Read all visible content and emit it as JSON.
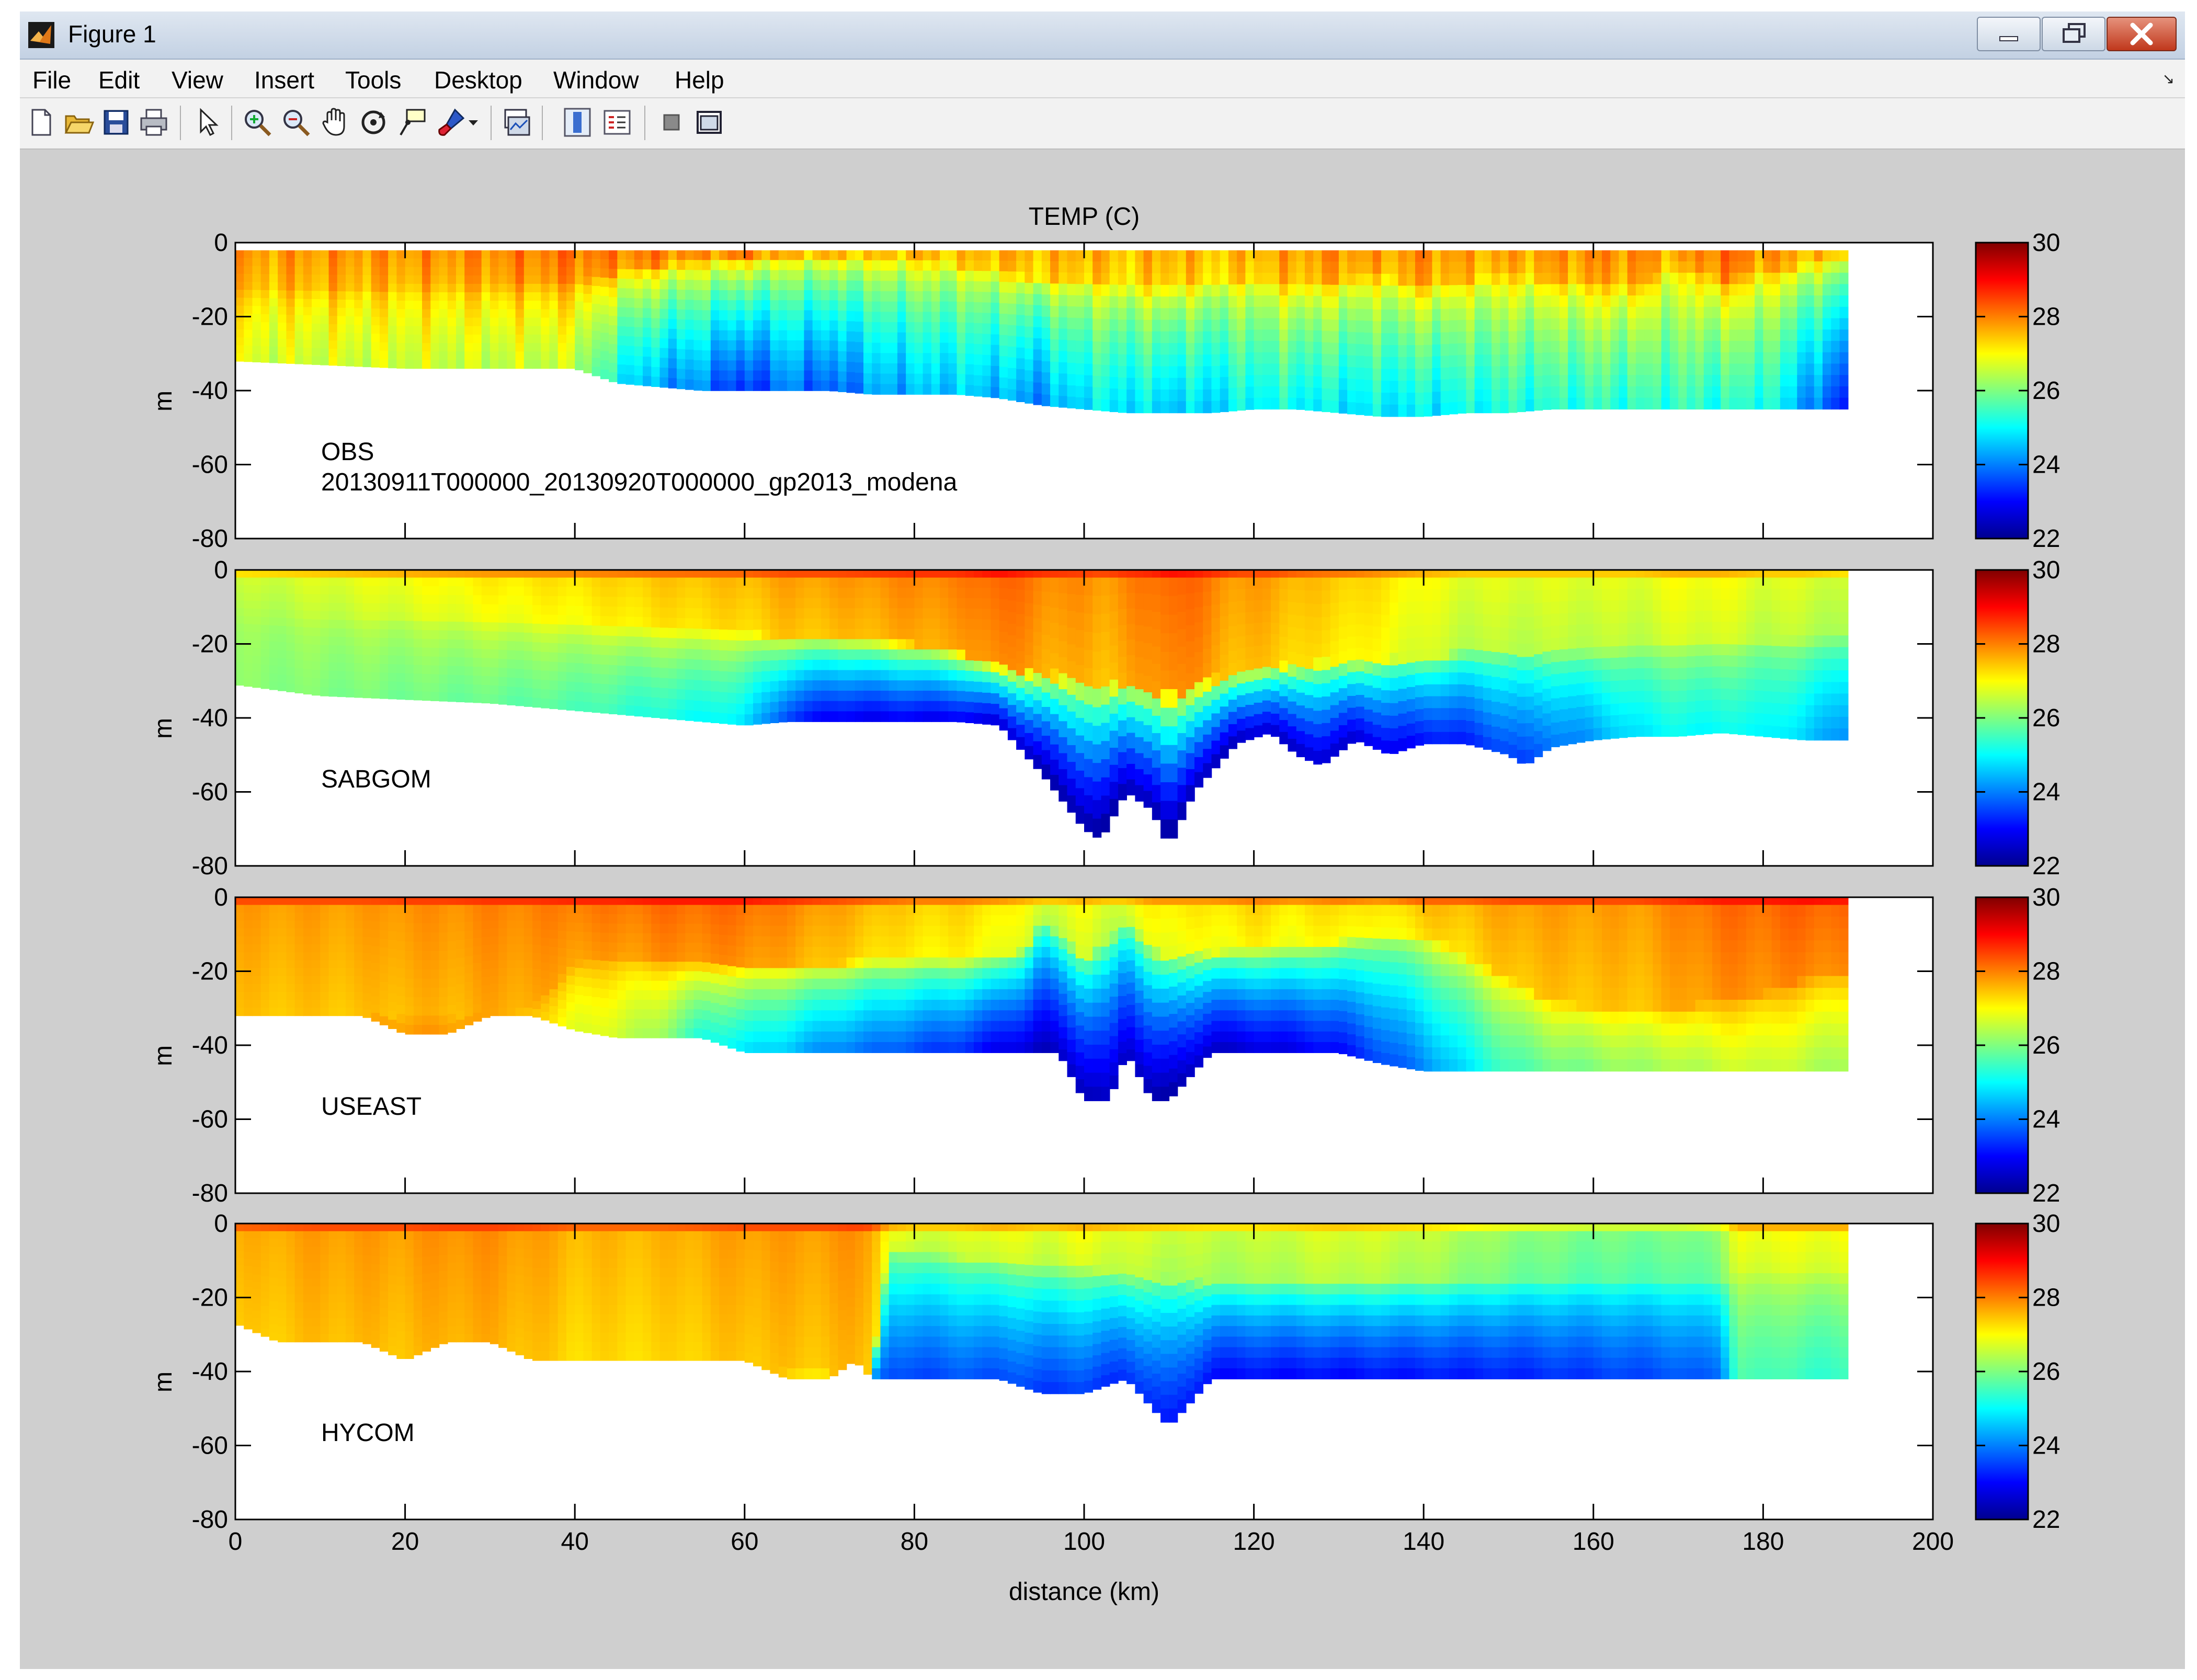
{
  "window": {
    "title": "Figure 1",
    "controls": [
      "minimize",
      "maximize",
      "close"
    ]
  },
  "menubar": {
    "items": [
      "File",
      "Edit",
      "View",
      "Insert",
      "Tools",
      "Desktop",
      "Window",
      "Help"
    ]
  },
  "toolbar": {
    "icons": [
      "new-figure-icon",
      "open-file-icon",
      "save-icon",
      "print-icon",
      "edit-plot-arrow-icon",
      "zoom-in-icon",
      "zoom-out-icon",
      "pan-hand-icon",
      "rotate-3d-icon",
      "data-cursor-icon",
      "brush-icon",
      "brush-dropdown-icon",
      "link-plot-icon",
      "colorbar-icon",
      "legend-icon",
      "hide-plot-tools-icon",
      "show-plot-tools-icon"
    ]
  },
  "figure": {
    "title": "TEMP (C)",
    "xlabel": "distance (km)",
    "ylabel": "m",
    "x_ticks": [
      "0",
      "20",
      "40",
      "60",
      "80",
      "100",
      "120",
      "140",
      "160",
      "180",
      "200"
    ],
    "y_ticks": [
      "0",
      "-20",
      "-40",
      "-60",
      "-80"
    ],
    "colorbar_ticks": [
      "30",
      "28",
      "26",
      "24",
      "22"
    ],
    "panels": [
      {
        "label": "OBS",
        "sublabel": "20130911T000000_20130920T000000_gp2013_modena"
      },
      {
        "label": "SABGOM",
        "sublabel": ""
      },
      {
        "label": "USEAST",
        "sublabel": ""
      },
      {
        "label": "HYCOM",
        "sublabel": ""
      }
    ]
  },
  "chart_data": [
    {
      "type": "heatmap",
      "name": "OBS",
      "title": "TEMP (C)",
      "xlabel": "",
      "ylabel": "m",
      "xlim": [
        0,
        200
      ],
      "ylim": [
        -80,
        0
      ],
      "colorbar_range": [
        22,
        30
      ],
      "colormap": "jet",
      "x": [
        0,
        10,
        20,
        30,
        40,
        45,
        50,
        55,
        60,
        65,
        70,
        75,
        80,
        85,
        90,
        95,
        100,
        105,
        110,
        115,
        120,
        125,
        130,
        135,
        140,
        145,
        150,
        155,
        160,
        165,
        170,
        175,
        180,
        185,
        190
      ],
      "bottom_depth": [
        -32,
        -33,
        -34,
        -34,
        -34,
        -38,
        -39,
        -40,
        -40,
        -40,
        -40,
        -41,
        -41,
        -41,
        -42,
        -44,
        -45,
        -46,
        -46,
        -46,
        -45,
        -45,
        -46,
        -47,
        -47,
        -46,
        -46,
        -45,
        -45,
        -45,
        -45,
        -45,
        -45,
        -45,
        -45
      ],
      "surface_temp": [
        27.8,
        27.9,
        27.9,
        28.0,
        28.2,
        28.1,
        28.2,
        28.0,
        28.3,
        27.8,
        27.8,
        27.6,
        27.8,
        27.6,
        27.8,
        27.6,
        27.8,
        27.5,
        27.8,
        27.5,
        27.7,
        27.8,
        28.0,
        27.8,
        28.0,
        27.8,
        27.8,
        27.9,
        28.0,
        28.0,
        27.8,
        28.3,
        28.0,
        27.8,
        27.5
      ],
      "thermocline_depth": [
        -13,
        -13,
        -12,
        -12,
        -11,
        -8,
        -6,
        -5,
        -4,
        -4,
        -4,
        -5,
        -5,
        -6,
        -8,
        -10,
        -10,
        -12,
        -12,
        -11,
        -10,
        -12,
        -10,
        -9,
        -12,
        -10,
        -9,
        -10,
        -11,
        -12,
        -6,
        -10,
        -8,
        -6,
        -4
      ],
      "bottom_temp": [
        26.7,
        26.6,
        26.6,
        26.5,
        26.5,
        25.0,
        24.2,
        24.0,
        23.2,
        24.0,
        23.6,
        24.2,
        24.4,
        24.6,
        24.4,
        24.0,
        24.8,
        24.8,
        24.6,
        24.6,
        25.0,
        25.0,
        24.8,
        24.8,
        24.8,
        25.0,
        25.2,
        25.2,
        25.3,
        25.3,
        25.4,
        25.2,
        25.3,
        24.2,
        23.0
      ]
    },
    {
      "type": "heatmap",
      "name": "SABGOM",
      "xlim": [
        0,
        200
      ],
      "ylim": [
        -80,
        0
      ],
      "colorbar_range": [
        22,
        30
      ],
      "colormap": "jet",
      "x": [
        0,
        10,
        20,
        30,
        40,
        50,
        60,
        65,
        70,
        80,
        85,
        90,
        95,
        100,
        102,
        105,
        108,
        110,
        113,
        118,
        122,
        125,
        128,
        132,
        136,
        140,
        145,
        150,
        152,
        155,
        160,
        165,
        170,
        175,
        180,
        185,
        190
      ],
      "bottom_depth": [
        -31,
        -34,
        -35,
        -36,
        -38,
        -40,
        -42,
        -41,
        -41,
        -41,
        -41,
        -42,
        -55,
        -70,
        -73,
        -60,
        -65,
        -75,
        -60,
        -47,
        -44,
        -50,
        -53,
        -46,
        -50,
        -47,
        -47,
        -50,
        -53,
        -48,
        -46,
        -45,
        -45,
        -44,
        -45,
        -46,
        -46
      ],
      "surface_temp": [
        26.6,
        26.8,
        27.0,
        27.2,
        27.3,
        27.5,
        27.6,
        27.8,
        27.8,
        28.0,
        28.0,
        28.3,
        28.0,
        27.9,
        27.8,
        28.0,
        28.1,
        28.3,
        28.2,
        27.8,
        27.8,
        27.6,
        27.5,
        27.4,
        27.2,
        27.0,
        26.8,
        26.8,
        26.8,
        26.8,
        26.8,
        26.8,
        27.0,
        27.0,
        26.8,
        26.8,
        26.6
      ],
      "thermocline_depth": [
        -14,
        -14,
        -13,
        -14,
        -15,
        -16,
        -17,
        -18,
        -18,
        -20,
        -22,
        -26,
        -28,
        -30,
        -32,
        -30,
        -32,
        -34,
        -31,
        -28,
        -26,
        -26,
        -25,
        -25,
        -24,
        -24,
        -22,
        -22,
        -22,
        -22,
        -22,
        -21,
        -20,
        -20,
        -19,
        -19,
        -18
      ],
      "bottom_temp": [
        26.1,
        26.0,
        25.9,
        25.8,
        25.6,
        25.2,
        24.8,
        23.4,
        22.8,
        22.8,
        22.8,
        22.6,
        22.3,
        22.2,
        22.2,
        22.3,
        22.3,
        22.2,
        22.3,
        22.4,
        22.5,
        22.5,
        22.5,
        22.6,
        22.8,
        23.0,
        23.2,
        23.5,
        23.5,
        23.8,
        24.2,
        24.8,
        25.0,
        25.0,
        25.0,
        24.6,
        24.0
      ]
    },
    {
      "type": "heatmap",
      "name": "USEAST",
      "xlim": [
        0,
        200
      ],
      "ylim": [
        -80,
        0
      ],
      "colorbar_range": [
        22,
        30
      ],
      "colormap": "jet",
      "x": [
        0,
        10,
        15,
        20,
        25,
        30,
        35,
        40,
        45,
        50,
        55,
        60,
        65,
        70,
        75,
        80,
        85,
        90,
        93,
        95,
        97,
        100,
        103,
        105,
        108,
        110,
        115,
        120,
        125,
        130,
        135,
        140,
        145,
        150,
        155,
        160,
        165,
        170,
        175,
        180,
        185,
        190
      ],
      "bottom_depth": [
        -32,
        -32,
        -32,
        -37,
        -37,
        -32,
        -32,
        -36,
        -38,
        -38,
        -38,
        -42,
        -42,
        -42,
        -42,
        -42,
        -42,
        -42,
        -42,
        -42,
        -42,
        -55,
        -55,
        -42,
        -55,
        -55,
        -42,
        -42,
        -42,
        -42,
        -45,
        -47,
        -47,
        -47,
        -47,
        -47,
        -47,
        -47,
        -47,
        -47,
        -47,
        -47
      ],
      "surface_temp": [
        27.8,
        27.8,
        27.8,
        27.9,
        27.9,
        28.0,
        28.0,
        28.1,
        28.1,
        28.2,
        28.2,
        28.2,
        28.0,
        27.8,
        27.6,
        27.4,
        27.4,
        27.2,
        27.0,
        26.8,
        26.8,
        27.0,
        26.8,
        26.8,
        27.2,
        27.2,
        27.2,
        27.4,
        27.2,
        27.4,
        27.2,
        27.6,
        27.6,
        27.8,
        27.8,
        27.8,
        27.8,
        28.0,
        28.2,
        28.2,
        28.3,
        28.2
      ],
      "thermocline_depth": [
        -32,
        -32,
        -32,
        -32,
        -32,
        -32,
        -30,
        -18,
        -16,
        -17,
        -18,
        -18,
        -18,
        -18,
        -17,
        -17,
        -17,
        -16,
        -14,
        -6,
        -10,
        -16,
        -12,
        -6,
        -14,
        -16,
        -15,
        -14,
        -14,
        -12,
        -10,
        -10,
        -16,
        -22,
        -28,
        -30,
        -30,
        -30,
        -28,
        -26,
        -22,
        -20
      ],
      "bottom_temp": [
        27.8,
        27.8,
        27.8,
        27.8,
        27.8,
        27.8,
        27.4,
        26.8,
        26.6,
        26.2,
        25.2,
        24.8,
        24.5,
        24.0,
        23.8,
        23.5,
        23.3,
        22.8,
        22.6,
        22.4,
        22.6,
        22.3,
        22.6,
        22.5,
        22.3,
        22.3,
        22.5,
        22.6,
        22.8,
        23.0,
        23.5,
        24.0,
        24.8,
        25.5,
        25.8,
        26.0,
        26.2,
        26.3,
        26.5,
        26.6,
        26.4,
        26.2
      ]
    },
    {
      "type": "heatmap",
      "name": "HYCOM",
      "xlabel": "distance (km)",
      "xlim": [
        0,
        200
      ],
      "ylim": [
        -80,
        0
      ],
      "colorbar_range": [
        22,
        30
      ],
      "colormap": "jet",
      "x": [
        0,
        5,
        10,
        15,
        20,
        25,
        30,
        35,
        40,
        50,
        60,
        65,
        70,
        73,
        75,
        77,
        80,
        85,
        90,
        95,
        100,
        105,
        110,
        115,
        120,
        130,
        140,
        150,
        160,
        170,
        175,
        177,
        180,
        185,
        190
      ],
      "bottom_depth": [
        -27,
        -32,
        -32,
        -32,
        -37,
        -32,
        -32,
        -37,
        -37,
        -37,
        -37,
        -42,
        -42,
        -37,
        -42,
        -42,
        -42,
        -42,
        -42,
        -46,
        -46,
        -42,
        -55,
        -42,
        -42,
        -42,
        -42,
        -42,
        -42,
        -42,
        -42,
        -42,
        -42,
        -42,
        -42
      ],
      "surface_temp": [
        27.6,
        27.7,
        27.8,
        27.8,
        27.8,
        27.9,
        27.9,
        27.8,
        27.6,
        27.6,
        27.8,
        27.8,
        27.8,
        27.9,
        27.8,
        27.0,
        26.8,
        26.8,
        27.0,
        26.8,
        27.0,
        26.8,
        26.7,
        26.6,
        26.6,
        26.8,
        26.6,
        26.2,
        26.0,
        26.0,
        26.2,
        27.0,
        27.0,
        27.0,
        27.0
      ],
      "thermocline_depth": [
        -40,
        -40,
        -40,
        -40,
        -40,
        -40,
        -40,
        -40,
        -40,
        -40,
        -40,
        -40,
        -40,
        -40,
        -40,
        -6,
        -8,
        -9,
        -10,
        -12,
        -12,
        -14,
        -15,
        -16,
        -16,
        -16,
        -16,
        -16,
        -16,
        -16,
        -16,
        -14,
        -14,
        -14,
        -14
      ],
      "bottom_temp": [
        27.6,
        27.6,
        27.6,
        27.6,
        27.6,
        27.6,
        27.6,
        27.5,
        27.3,
        27.1,
        27.1,
        27.1,
        27.0,
        27.0,
        24.2,
        23.5,
        23.5,
        23.6,
        23.6,
        23.4,
        23.4,
        23.3,
        23.2,
        23.0,
        23.0,
        23.0,
        23.1,
        23.2,
        23.4,
        23.6,
        23.8,
        25.6,
        25.6,
        25.4,
        25.4
      ]
    }
  ]
}
